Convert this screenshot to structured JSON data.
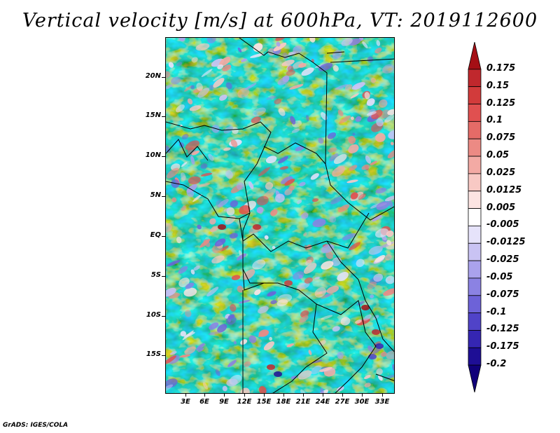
{
  "title": "Vertical velocity [m/s] at 600hPa, VT: 2019112600",
  "lat_labels": [
    "20N",
    "15N",
    "10N",
    "5N",
    "EQ",
    "5S",
    "10S",
    "15S"
  ],
  "lon_labels": [
    "3E",
    "6E",
    "9E",
    "12E",
    "15E",
    "18E",
    "21E",
    "24E",
    "27E",
    "30E",
    "33E"
  ],
  "colorbar": {
    "levels": [
      "0.175",
      "0.15",
      "0.125",
      "0.1",
      "0.075",
      "0.05",
      "0.025",
      "0.0125",
      "0.005",
      "-0.005",
      "-0.0125",
      "-0.025",
      "-0.05",
      "-0.075",
      "-0.1",
      "-0.125",
      "-0.175",
      "-0.2"
    ],
    "colors": [
      "#a50f15",
      "#c0282d",
      "#d23b3b",
      "#e05050",
      "#e56b67",
      "#ec8a84",
      "#f3aaa4",
      "#f8c9c4",
      "#fce4e2",
      "#ffffff",
      "#e6e3fa",
      "#c9c3f3",
      "#aaa2ec",
      "#8b82e3",
      "#6d62d8",
      "#5043c8",
      "#3526b2",
      "#1e0e95",
      "#10007a"
    ]
  },
  "credit": "GrADS: IGES/COLA"
}
